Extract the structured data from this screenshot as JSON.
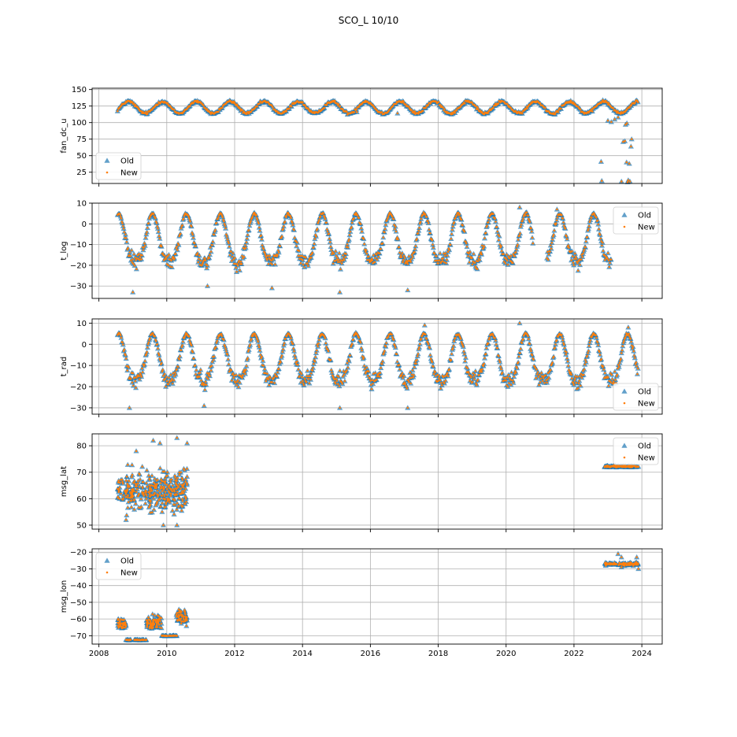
{
  "title": "SCO_L 10/10",
  "legend_labels": {
    "old": "Old",
    "new": "New"
  },
  "colors": {
    "old": "#1f77b4",
    "new": "#ff7f0e",
    "grid": "#b0b0b0"
  },
  "xaxis": {
    "range": [
      2007.8,
      2024.6
    ],
    "ticks": [
      2008,
      2010,
      2012,
      2014,
      2016,
      2018,
      2020,
      2022,
      2024
    ],
    "tick_labels": [
      "2008",
      "2010",
      "2012",
      "2014",
      "2016",
      "2018",
      "2020",
      "2022",
      "2024"
    ]
  },
  "chart_data": [
    {
      "type": "scatter",
      "ylabel": "fan_dc_u",
      "ylim": [
        8,
        152
      ],
      "yticks": [
        25,
        50,
        75,
        100,
        125,
        150
      ],
      "ytick_labels": [
        "25",
        "50",
        "75",
        "100",
        "125",
        "150"
      ],
      "grid": true,
      "legend": "lower-left",
      "pattern": "seasonal",
      "base": 123,
      "amp": 9,
      "phase": 0.62,
      "noise": 3,
      "x_range": [
        2008.55,
        2023.9
      ],
      "gaps": [],
      "extra_points": [
        [
          2022.8,
          41
        ],
        [
          2022.82,
          12
        ],
        [
          2023.45,
          71
        ],
        [
          2023.5,
          72
        ],
        [
          2023.55,
          40
        ],
        [
          2023.58,
          10
        ],
        [
          2023.6,
          13
        ],
        [
          2023.63,
          38
        ],
        [
          2023.65,
          11
        ],
        [
          2023.68,
          64
        ],
        [
          2023.7,
          75
        ],
        [
          2023.52,
          97
        ],
        [
          2023.56,
          99
        ],
        [
          2023.4,
          11
        ],
        [
          2023.46,
          9
        ],
        [
          2015.6,
          116
        ],
        [
          2016.8,
          114
        ],
        [
          2023.0,
          103
        ],
        [
          2023.1,
          101
        ],
        [
          2023.2,
          105
        ],
        [
          2023.3,
          108
        ]
      ],
      "series": [
        {
          "name": "Old"
        },
        {
          "name": "New"
        }
      ]
    },
    {
      "type": "scatter",
      "ylabel": "t_log",
      "ylim": [
        -36,
        10
      ],
      "yticks": [
        -30,
        -20,
        -10,
        0,
        10
      ],
      "ytick_labels": [
        "−30",
        "−20",
        "−10",
        "0",
        "10"
      ],
      "grid": true,
      "legend": "upper-right",
      "pattern": "temperature",
      "summer": 5,
      "winter": -18,
      "noise": 6,
      "x_range": [
        2008.55,
        2023.1
      ],
      "gaps": [
        [
          2020.8,
          2021.2
        ]
      ],
      "extra_points": [
        [
          2009.0,
          -33
        ],
        [
          2015.1,
          -33
        ],
        [
          2017.1,
          -32
        ],
        [
          2020.4,
          8
        ],
        [
          2021.5,
          7
        ],
        [
          2011.2,
          -30
        ],
        [
          2013.1,
          -31
        ]
      ],
      "series": [
        {
          "name": "Old"
        },
        {
          "name": "New"
        }
      ]
    },
    {
      "type": "scatter",
      "ylabel": "t_rad",
      "ylim": [
        -33,
        12
      ],
      "yticks": [
        -30,
        -20,
        -10,
        0,
        10
      ],
      "ytick_labels": [
        "−30",
        "−20",
        "−10",
        "0",
        "10"
      ],
      "grid": true,
      "legend": "lower-right",
      "pattern": "temperature",
      "summer": 5,
      "winter": -17,
      "noise": 6,
      "x_range": [
        2008.55,
        2023.9
      ],
      "gaps": [],
      "extra_points": [
        [
          2008.9,
          -30
        ],
        [
          2015.1,
          -30
        ],
        [
          2017.1,
          -30
        ],
        [
          2020.4,
          10
        ],
        [
          2017.6,
          9
        ],
        [
          2023.6,
          8
        ],
        [
          2011.1,
          -29
        ]
      ],
      "series": [
        {
          "name": "Old"
        },
        {
          "name": "New"
        }
      ]
    },
    {
      "type": "scatter",
      "ylabel": "msg_lat",
      "ylim": [
        48.5,
        84.5
      ],
      "yticks": [
        50,
        60,
        70,
        80
      ],
      "ytick_labels": [
        "50",
        "60",
        "70",
        "80"
      ],
      "grid": true,
      "legend": "upper-right",
      "pattern": "cluster",
      "clusters": [
        {
          "x_range": [
            2008.55,
            2010.6
          ],
          "y_center": 63,
          "y_spread": 11,
          "count": 320
        },
        {
          "x_range": [
            2022.9,
            2023.9
          ],
          "y_center": 72.2,
          "y_spread": 0.5,
          "count": 90
        }
      ],
      "extra_points": [
        [
          2010.3,
          83
        ],
        [
          2009.8,
          81
        ],
        [
          2009.6,
          82
        ],
        [
          2010.6,
          81
        ],
        [
          2009.1,
          78
        ],
        [
          2010.3,
          50
        ],
        [
          2009.9,
          50
        ],
        [
          2008.8,
          52
        ]
      ],
      "series": [
        {
          "name": "Old"
        },
        {
          "name": "New"
        }
      ]
    },
    {
      "type": "scatter",
      "ylabel": "msg_lon",
      "ylim": [
        -75,
        -18
      ],
      "yticks": [
        -70,
        -60,
        -50,
        -40,
        -30,
        -20
      ],
      "ytick_labels": [
        "−70",
        "−60",
        "−50",
        "−40",
        "−30",
        "−20"
      ],
      "grid": true,
      "legend": "upper-left",
      "pattern": "lon",
      "segments": [
        {
          "x_range": [
            2008.55,
            2008.8
          ],
          "y_center": -63,
          "y_spread": 5,
          "count": 40
        },
        {
          "x_range": [
            2008.75,
            2009.4
          ],
          "y_center": -72.5,
          "y_spread": 0.3,
          "count": 40
        },
        {
          "x_range": [
            2009.4,
            2009.85
          ],
          "y_center": -62,
          "y_spread": 6,
          "count": 70
        },
        {
          "x_range": [
            2009.85,
            2010.3
          ],
          "y_center": -70,
          "y_spread": 0.3,
          "count": 30
        },
        {
          "x_range": [
            2010.25,
            2010.6
          ],
          "y_center": -59,
          "y_spread": 6,
          "count": 50
        },
        {
          "x_range": [
            2022.9,
            2023.9
          ],
          "y_center": -27,
          "y_spread": 1.5,
          "count": 90
        }
      ],
      "extra_points": [
        [
          2023.3,
          -21
        ],
        [
          2023.4,
          -23
        ],
        [
          2023.85,
          -23
        ],
        [
          2023.9,
          -30
        ],
        [
          2023.4,
          -29
        ]
      ],
      "series": [
        {
          "name": "Old"
        },
        {
          "name": "New"
        }
      ]
    }
  ]
}
